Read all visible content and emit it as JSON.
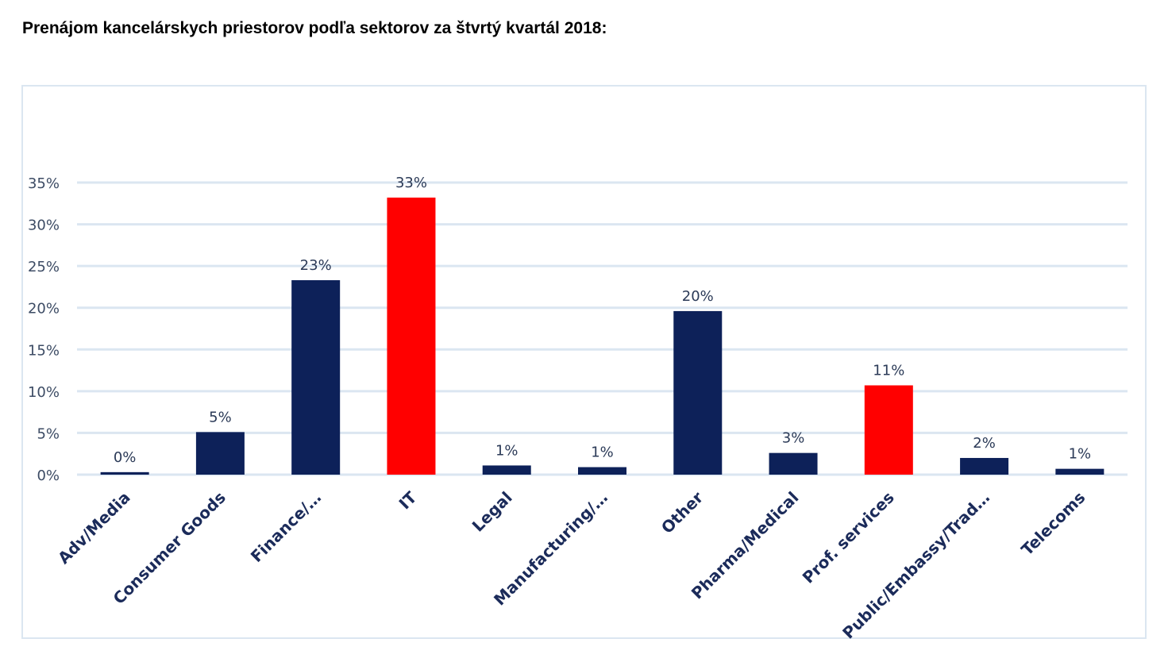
{
  "title": "Prenájom kancelárskych priestorov podľa sektorov za štvrtý kvartál 2018:",
  "chart_data": {
    "type": "bar",
    "title": "",
    "xlabel": "",
    "ylabel": "",
    "ylim": [
      0,
      0.35
    ],
    "yticks": [
      0,
      0.05,
      0.1,
      0.15,
      0.2,
      0.25,
      0.3,
      0.35
    ],
    "ytick_labels": [
      "0%",
      "5%",
      "10%",
      "15%",
      "20%",
      "25%",
      "30%",
      "35%"
    ],
    "grid": true,
    "legend": "none",
    "categories": [
      "Adv/Media",
      "Consumer Goods",
      "Finance/…",
      "IT",
      "Legal",
      "Manufacturing/…",
      "Other",
      "Pharma/Medical",
      "Prof. services",
      "Public/Embassy/Trad…",
      "Telecoms"
    ],
    "values": [
      0.003,
      0.051,
      0.233,
      0.332,
      0.011,
      0.009,
      0.196,
      0.026,
      0.107,
      0.02,
      0.007
    ],
    "data_labels": [
      "0%",
      "5%",
      "23%",
      "33%",
      "1%",
      "1%",
      "20%",
      "3%",
      "11%",
      "2%",
      "1%"
    ],
    "bar_colors": [
      "#0d2159",
      "#0d2159",
      "#0d2159",
      "#ff0000",
      "#0d2159",
      "#0d2159",
      "#0d2159",
      "#0d2159",
      "#ff0000",
      "#0d2159",
      "#0d2159"
    ]
  },
  "colors": {
    "primary_bar": "#0d2159",
    "highlight_bar": "#ff0000",
    "gridline": "#dbe6f1",
    "frame": "#dbe6f1"
  }
}
